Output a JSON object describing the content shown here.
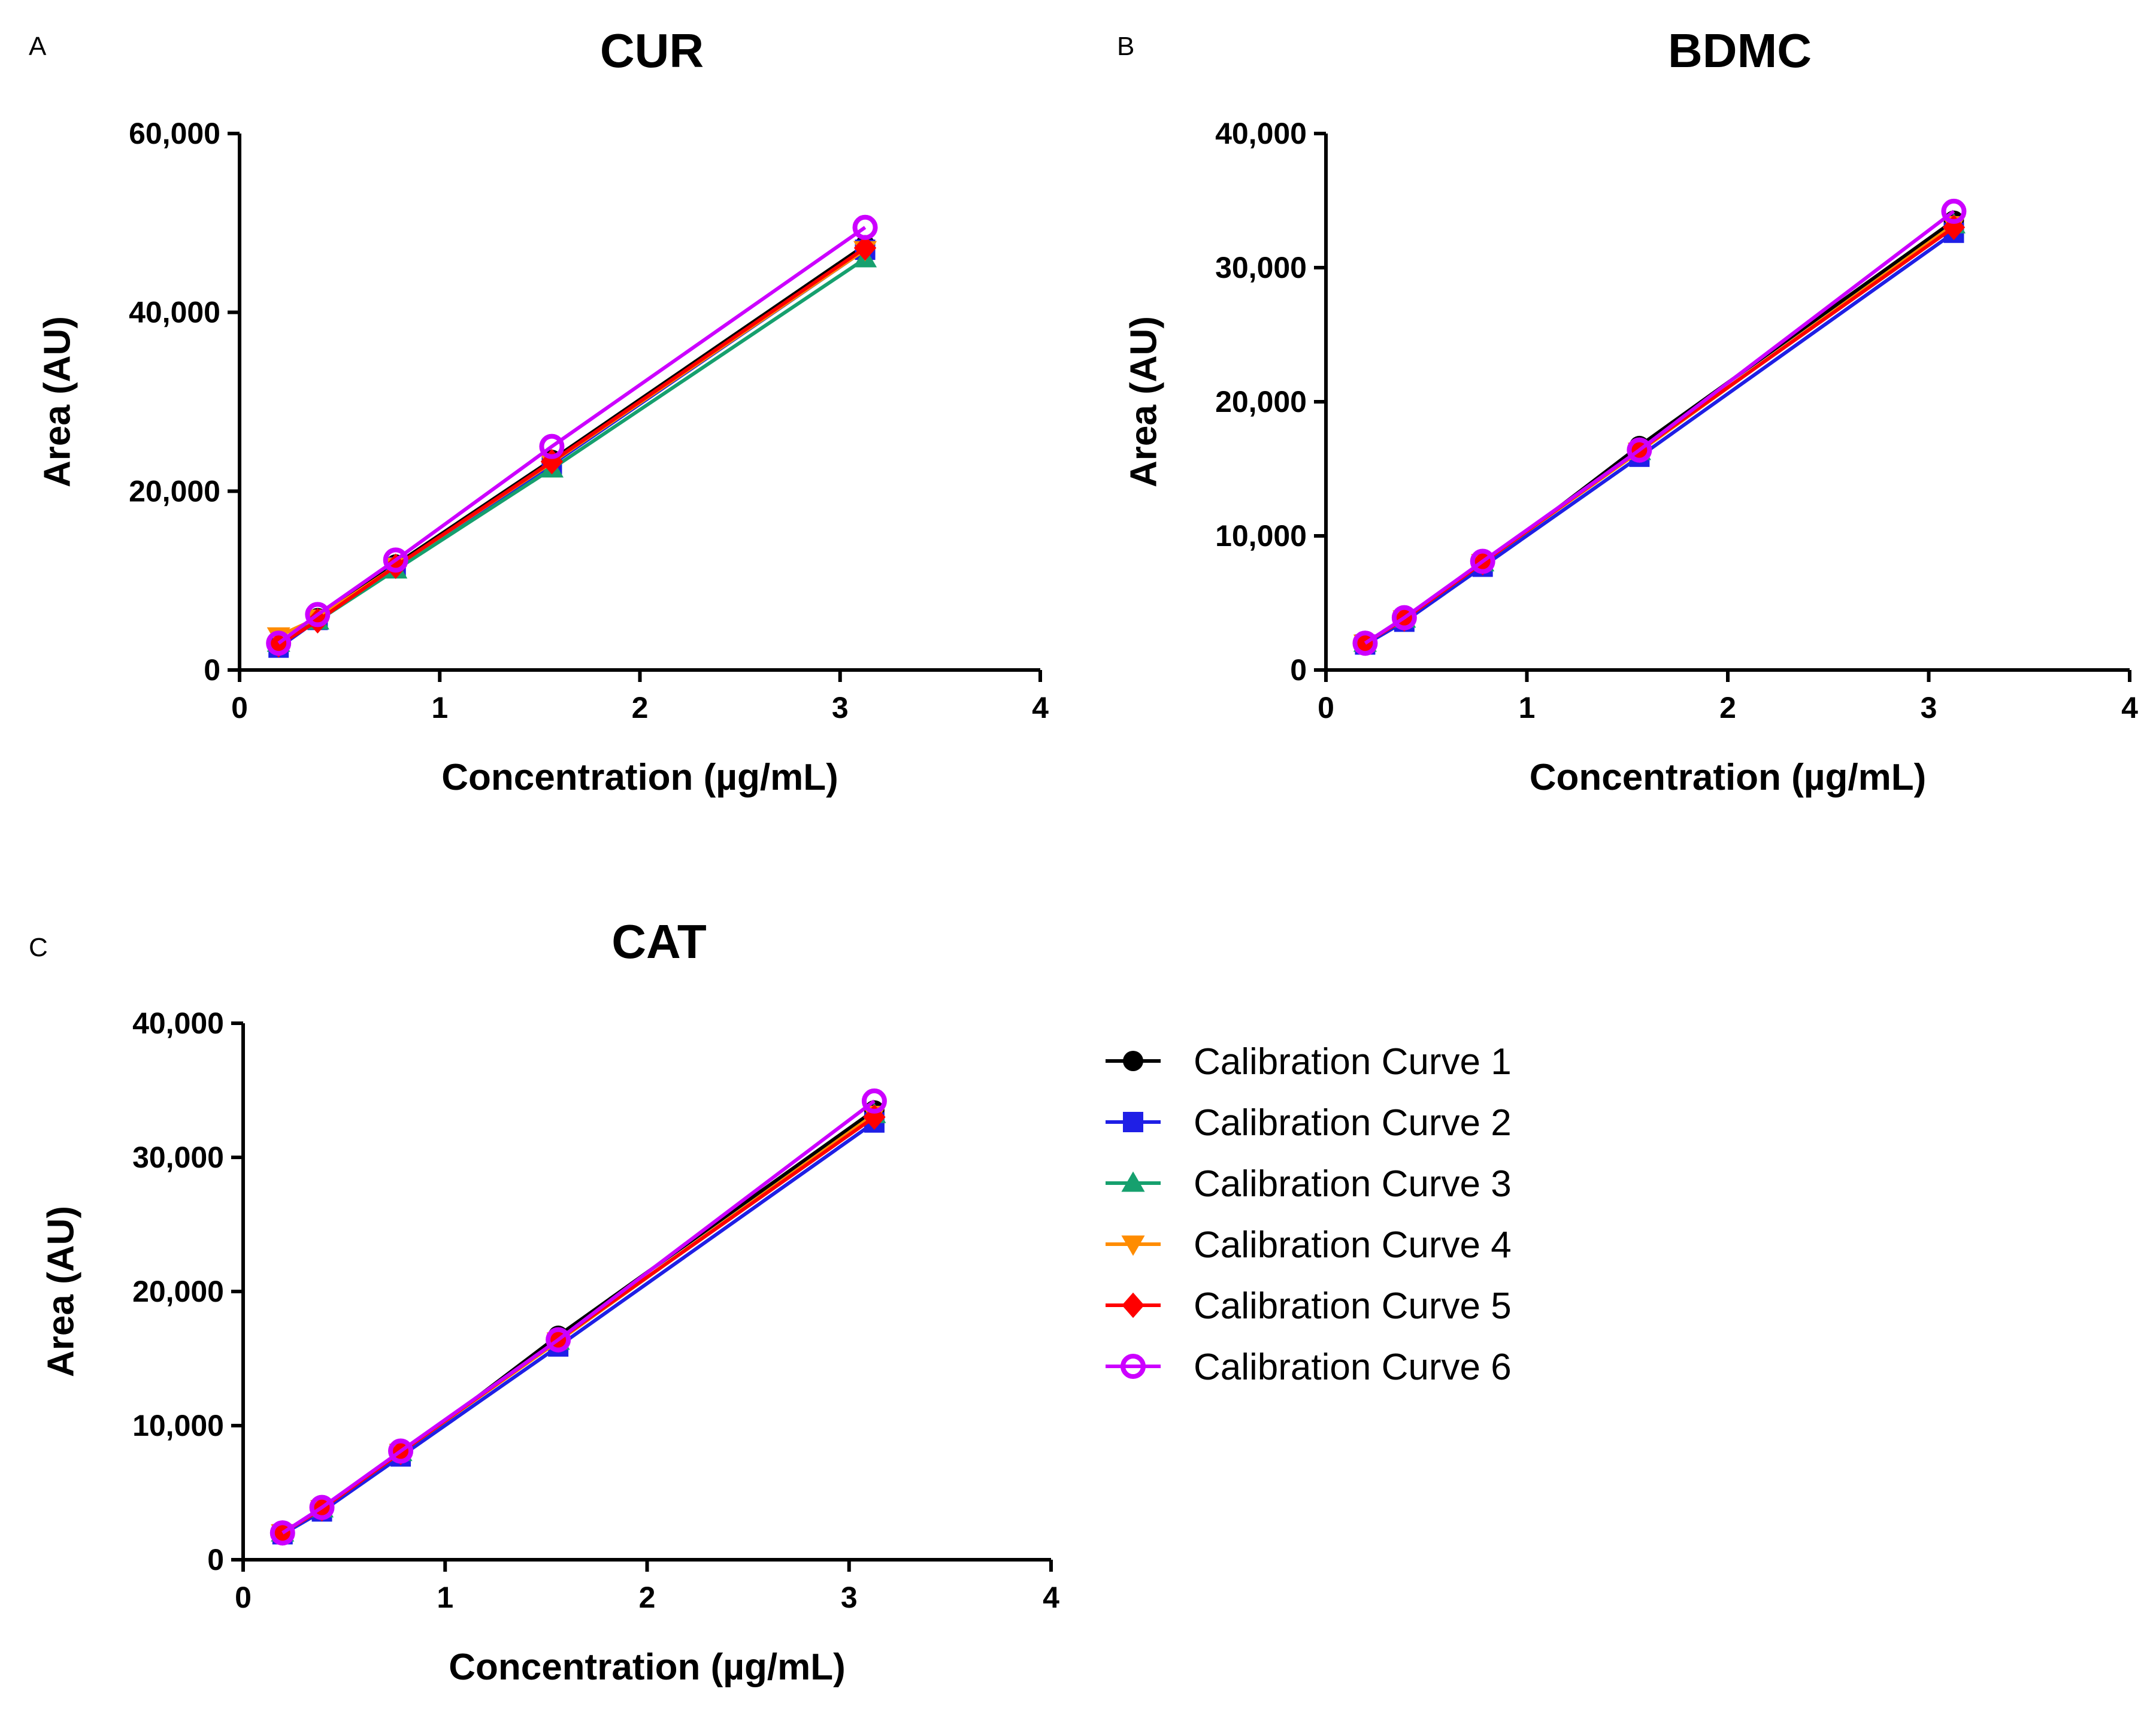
{
  "colors": {
    "Calibration Curve 1": "#000000",
    "Calibration Curve 2": "#1f1fe6",
    "Calibration Curve 3": "#16a06e",
    "Calibration Curve 4": "#ff8c00",
    "Calibration Curve 5": "#ff0000",
    "Calibration Curve 6": "#cc00ff"
  },
  "legend": {
    "items": [
      {
        "label": "Calibration Curve 1",
        "marker": "circle"
      },
      {
        "label": "Calibration Curve 2",
        "marker": "square"
      },
      {
        "label": "Calibration Curve 3",
        "marker": "triangle-up"
      },
      {
        "label": "Calibration Curve 4",
        "marker": "triangle-down"
      },
      {
        "label": "Calibration Curve 5",
        "marker": "diamond"
      },
      {
        "label": "Calibration Curve 6",
        "marker": "open-circle"
      }
    ]
  },
  "chart_data": [
    {
      "panel": "A",
      "type": "line",
      "title": "CUR",
      "xlabel": "Concentration (µg/mL)",
      "ylabel": "Area (AU)",
      "xlim": [
        0,
        4
      ],
      "ylim": [
        0,
        60000
      ],
      "xticks": [
        0,
        1,
        2,
        3,
        4
      ],
      "yticks": [
        0,
        20000,
        40000,
        60000
      ],
      "ytick_labels": [
        "0",
        "20,000",
        "40,000",
        "60,000"
      ],
      "x": [
        0.195,
        0.39,
        0.78,
        1.56,
        3.125
      ],
      "series": [
        {
          "name": "Calibration Curve 1",
          "values": [
            3000,
            5800,
            11800,
            23500,
            47500
          ]
        },
        {
          "name": "Calibration Curve 2",
          "values": [
            2500,
            5600,
            11500,
            23000,
            47000
          ]
        },
        {
          "name": "Calibration Curve 3",
          "values": [
            3000,
            5500,
            11200,
            22500,
            46000
          ]
        },
        {
          "name": "Calibration Curve 4",
          "values": [
            3800,
            5800,
            11600,
            23200,
            47000
          ]
        },
        {
          "name": "Calibration Curve 5",
          "values": [
            2800,
            5500,
            11600,
            23300,
            47200
          ]
        },
        {
          "name": "Calibration Curve 6",
          "values": [
            3000,
            6200,
            12300,
            25000,
            49500
          ]
        }
      ]
    },
    {
      "panel": "B",
      "type": "line",
      "title": "BDMC",
      "xlabel": "Concentration (µg/mL)",
      "ylabel": "Area (AU)",
      "xlim": [
        0,
        4
      ],
      "ylim": [
        0,
        40000
      ],
      "xticks": [
        0,
        1,
        2,
        3,
        4
      ],
      "yticks": [
        0,
        10000,
        20000,
        30000,
        40000
      ],
      "ytick_labels": [
        "0",
        "10,000",
        "20,000",
        "30,000",
        "40,000"
      ],
      "x": [
        0.195,
        0.39,
        0.78,
        1.56,
        3.125
      ],
      "series": [
        {
          "name": "Calibration Curve 1",
          "values": [
            2000,
            3800,
            7800,
            16700,
            33500
          ]
        },
        {
          "name": "Calibration Curve 2",
          "values": [
            1900,
            3600,
            7700,
            15900,
            32600
          ]
        },
        {
          "name": "Calibration Curve 3",
          "values": [
            2000,
            3800,
            8000,
            16300,
            33200
          ]
        },
        {
          "name": "Calibration Curve 4",
          "values": [
            2000,
            3800,
            8000,
            16300,
            33200
          ]
        },
        {
          "name": "Calibration Curve 5",
          "values": [
            2000,
            3800,
            8000,
            16400,
            33000
          ]
        },
        {
          "name": "Calibration Curve 6",
          "values": [
            2000,
            3900,
            8100,
            16400,
            34200
          ]
        }
      ]
    },
    {
      "panel": "C",
      "type": "line",
      "title": "CAT",
      "xlabel": "Concentration (µg/mL)",
      "ylabel": "Area (AU)",
      "xlim": [
        0,
        4
      ],
      "ylim": [
        0,
        40000
      ],
      "xticks": [
        0,
        1,
        2,
        3,
        4
      ],
      "yticks": [
        0,
        10000,
        20000,
        30000,
        40000
      ],
      "ytick_labels": [
        "0",
        "10,000",
        "20,000",
        "30,000",
        "40,000"
      ],
      "x": [
        0.195,
        0.39,
        0.78,
        1.56,
        3.125
      ],
      "series": [
        {
          "name": "Calibration Curve 1",
          "values": [
            2000,
            3800,
            7800,
            16700,
            33500
          ]
        },
        {
          "name": "Calibration Curve 2",
          "values": [
            1900,
            3600,
            7700,
            15900,
            32600
          ]
        },
        {
          "name": "Calibration Curve 3",
          "values": [
            2000,
            3800,
            8000,
            16300,
            33200
          ]
        },
        {
          "name": "Calibration Curve 4",
          "values": [
            2000,
            3800,
            8000,
            16300,
            33200
          ]
        },
        {
          "name": "Calibration Curve 5",
          "values": [
            2000,
            3800,
            8000,
            16400,
            33000
          ]
        },
        {
          "name": "Calibration Curve 6",
          "values": [
            2000,
            3900,
            8100,
            16400,
            34200
          ]
        }
      ]
    }
  ]
}
